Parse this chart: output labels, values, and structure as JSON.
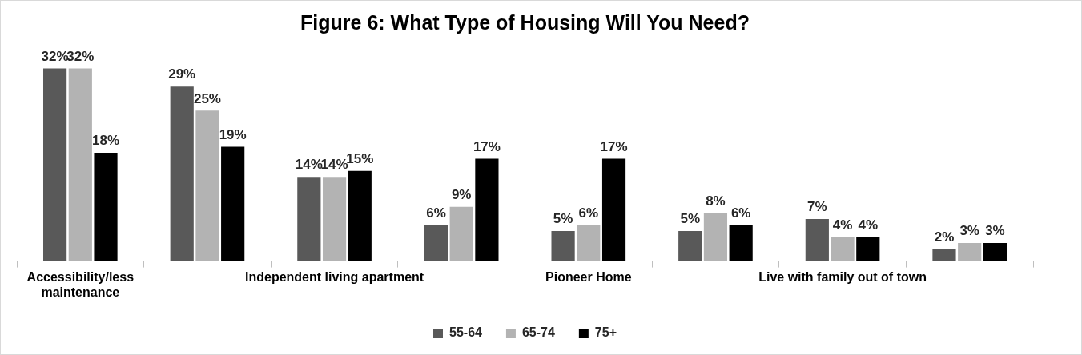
{
  "chart_data": {
    "type": "bar",
    "title": "Figure 6: What Type of Housing Will You Need?",
    "categories": [
      "Accessibility/less maintenance",
      null,
      "Independent living apartment",
      null,
      "Pioneer Home",
      null,
      "Live with family out of town",
      null
    ],
    "series": [
      {
        "name": "55-64",
        "color": "#595959",
        "values": [
          32,
          29,
          14,
          6,
          5,
          5,
          7,
          2
        ],
        "value_labels": [
          "32%",
          "29%",
          "14%",
          "6%",
          "5%",
          "5%",
          "7%",
          "2%"
        ]
      },
      {
        "name": "65-74",
        "color": "#b3b3b3",
        "values": [
          32,
          25,
          14,
          9,
          6,
          8,
          4,
          3
        ],
        "value_labels": [
          "32%",
          "25%",
          "14%",
          "9%",
          "6%",
          "8%",
          "4%",
          "3%"
        ]
      },
      {
        "name": "75+",
        "color": "#000000",
        "values": [
          18,
          19,
          15,
          17,
          17,
          6,
          4,
          3
        ],
        "value_labels": [
          "18%",
          "19%",
          "15%",
          "17%",
          "17%",
          "6%",
          "4%",
          "3%"
        ]
      }
    ],
    "legend": "bottom",
    "grid": false
  }
}
